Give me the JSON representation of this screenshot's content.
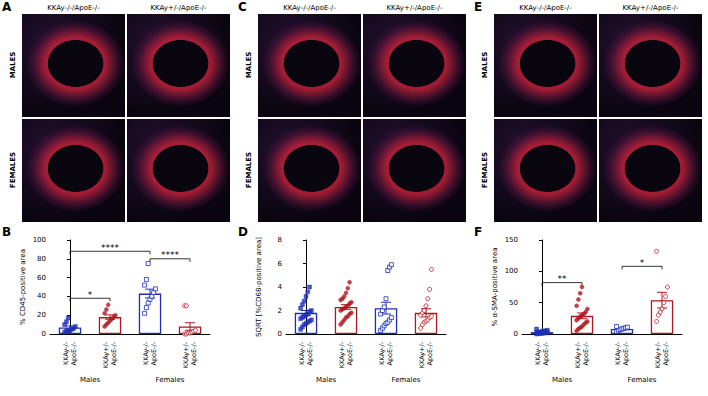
{
  "image_panels": [
    {
      "label": "A",
      "columns": [
        "KKAy-/-/ApoE-/-",
        "KKAy+/-/ApoE-/-"
      ],
      "rows": [
        "MALES",
        "FEMALES"
      ]
    },
    {
      "label": "C",
      "columns": [
        "KKAy-/-/ApoE-/-",
        "KKAy+/-/ApoE-/-"
      ],
      "rows": [
        "MALES",
        "FEMALES"
      ]
    },
    {
      "label": "E",
      "columns": [
        "KKAy-/-/ApoE-/-",
        "KKAy+/-/ApoE-/-"
      ],
      "rows": [
        "MALES",
        "FEMALES"
      ]
    }
  ],
  "chart_data": [
    {
      "type": "bar",
      "title": "B",
      "ylabel": "% CD45-positive area",
      "categories": [
        "KKAy-/-\nApoE-/-",
        "KKAy+/-\nApoE-/-",
        "KKAy-/-\nApoE-/-",
        "KKAy+/-\nApoE-/-"
      ],
      "groups": [
        "Males",
        "Males",
        "Females",
        "Females"
      ],
      "ylim": [
        0,
        100
      ],
      "yticks": [
        0,
        20,
        40,
        60,
        80,
        100
      ],
      "grid": false,
      "series": [
        {
          "color": "#1f2fb5",
          "marker": "square",
          "mean": 7,
          "error": 1.6,
          "points": [
            2,
            3,
            3,
            4,
            5,
            6,
            8,
            10,
            13,
            17
          ]
        },
        {
          "color": "#b0171f",
          "marker": "circle",
          "mean": 18,
          "error": 2.3,
          "points": [
            8,
            10,
            12,
            14,
            16,
            18,
            20,
            22,
            26,
            31
          ]
        },
        {
          "color": "#1f2fb5",
          "marker": "open-square",
          "mean": 43,
          "error": 4.7,
          "points": [
            22,
            28,
            33,
            37,
            40,
            44,
            48,
            52,
            58,
            75
          ]
        },
        {
          "color": "#b0171f",
          "marker": "open-circle",
          "mean": 8,
          "error": 4,
          "points": [
            0,
            0,
            1,
            1,
            2,
            3,
            4,
            30,
            30
          ]
        }
      ],
      "annotations": [
        {
          "text": "*",
          "from": 0,
          "to": 1,
          "y": 38
        },
        {
          "text": "****",
          "from": 0,
          "to": 2,
          "y": 88
        },
        {
          "text": "****",
          "from": 2,
          "to": 3,
          "y": 80
        }
      ]
    },
    {
      "type": "bar",
      "title": "D",
      "ylabel": "SQRT [%CD68-positive area]",
      "categories": [
        "KKAy-/-\nApoE-/-",
        "KKAy+/-\nApoE-/-",
        "KKAy-/-\nApoE-/-",
        "KKAy+/-\nApoE-/-"
      ],
      "groups": [
        "Males",
        "Males",
        "Females",
        "Females"
      ],
      "ylim": [
        0,
        8
      ],
      "yticks": [
        0,
        2,
        4,
        6,
        8
      ],
      "grid": false,
      "series": [
        {
          "color": "#1f2fb5",
          "marker": "square",
          "mean": 1.8,
          "error": 0.2,
          "points": [
            0.4,
            0.6,
            0.8,
            0.9,
            1.0,
            1.1,
            1.2,
            1.3,
            1.4,
            1.5,
            1.6,
            1.7,
            1.9,
            2.0,
            2.2,
            2.5,
            2.8,
            3.2,
            3.6,
            4.0
          ]
        },
        {
          "color": "#b0171f",
          "marker": "circle",
          "mean": 2.3,
          "error": 0.2,
          "points": [
            0.8,
            1.0,
            1.2,
            1.4,
            1.5,
            1.7,
            1.8,
            2.0,
            2.1,
            2.2,
            2.3,
            2.4,
            2.6,
            2.7,
            2.9,
            3.0,
            3.2,
            3.5,
            3.9,
            4.4
          ]
        },
        {
          "color": "#1f2fb5",
          "marker": "open-square",
          "mean": 2.2,
          "error": 0.5,
          "points": [
            0.3,
            0.5,
            0.7,
            0.9,
            1.0,
            1.2,
            1.4,
            1.7,
            2.0,
            2.3,
            3.0,
            5.4,
            5.7,
            5.9
          ]
        },
        {
          "color": "#b0171f",
          "marker": "open-circle",
          "mean": 1.8,
          "error": 0.35,
          "points": [
            0.5,
            0.8,
            1.0,
            1.1,
            1.2,
            1.4,
            1.5,
            1.6,
            1.8,
            2.0,
            2.4,
            3.0,
            3.8,
            5.5
          ]
        }
      ],
      "annotations": []
    },
    {
      "type": "bar",
      "title": "F",
      "ylabel": "% α-SMA-positive area",
      "categories": [
        "KKAy-/-\nApoE-/-",
        "KKAy+/-\nApoE-/-",
        "KKAy-/-\nApoE-/-",
        "KKAy+/-\nApoE-/-"
      ],
      "groups": [
        "Males",
        "Males",
        "Females",
        "Females"
      ],
      "ylim": [
        0,
        150
      ],
      "yticks": [
        0,
        50,
        100,
        150
      ],
      "grid": false,
      "series": [
        {
          "color": "#1f2fb5",
          "marker": "square",
          "mean": 3,
          "error": 0.6,
          "points": [
            0,
            0.5,
            1,
            1,
            1.5,
            2,
            2,
            2.5,
            3,
            3,
            4,
            4.5,
            5,
            6,
            8
          ]
        },
        {
          "color": "#b0171f",
          "marker": "circle",
          "mean": 29,
          "error": 4.6,
          "points": [
            5,
            8,
            10,
            12,
            15,
            18,
            20,
            22,
            25,
            28,
            30,
            32,
            35,
            40,
            45,
            55,
            65,
            75
          ]
        },
        {
          "color": "#1f2fb5",
          "marker": "open-square",
          "mean": 8,
          "error": 0.9,
          "points": [
            4,
            6,
            7,
            8,
            9,
            10,
            11,
            12
          ]
        },
        {
          "color": "#b0171f",
          "marker": "open-circle",
          "mean": 54,
          "error": 12.5,
          "points": [
            20,
            30,
            35,
            40,
            50,
            60,
            75,
            132
          ]
        }
      ],
      "annotations": [
        {
          "text": "**",
          "from": 0,
          "to": 1,
          "y": 82
        },
        {
          "text": "*",
          "from": 2,
          "to": 3,
          "y": 108
        }
      ]
    }
  ]
}
